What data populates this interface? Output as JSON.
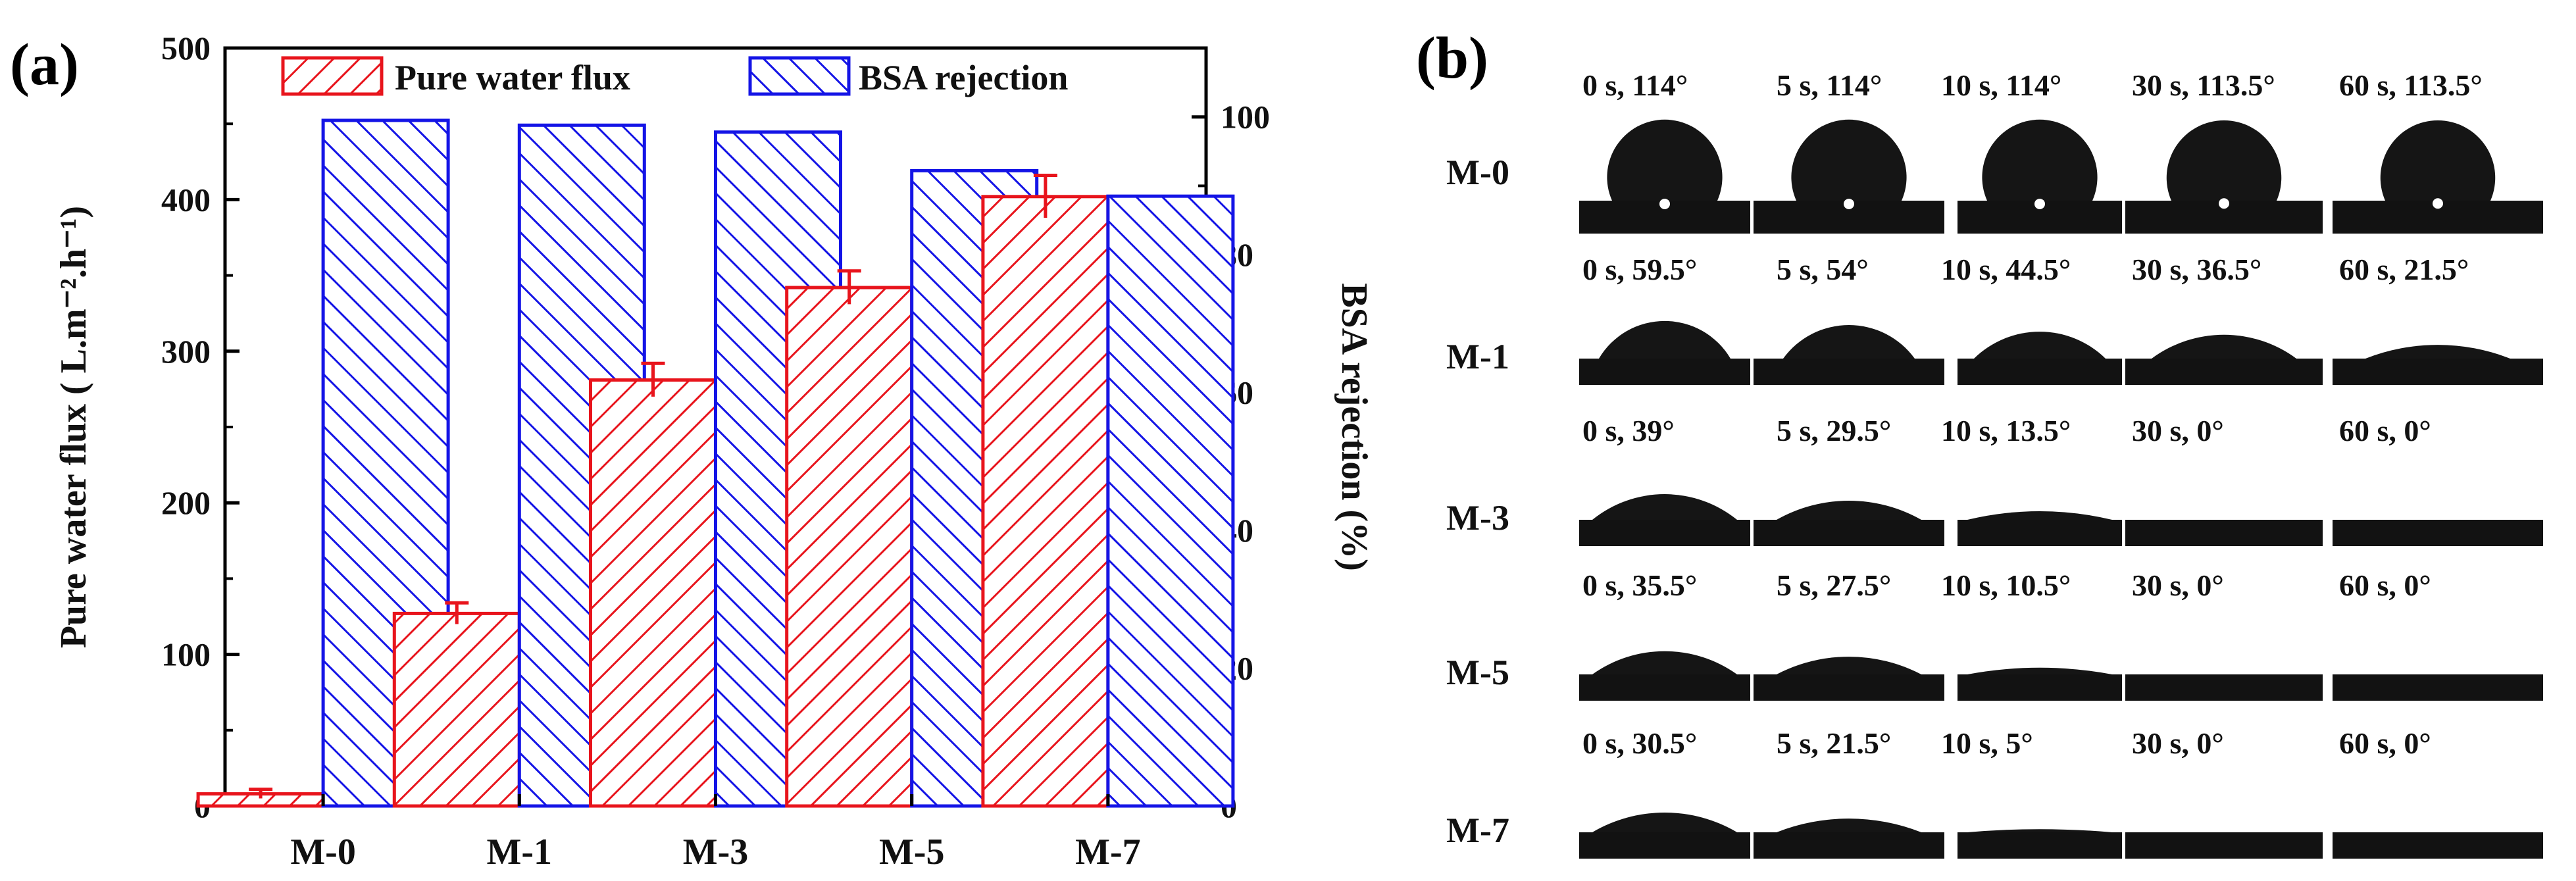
{
  "panel_a_label": "(a)",
  "panel_b_label": "(b)",
  "chart_data": {
    "type": "bar",
    "categories": [
      "M-0",
      "M-1",
      "M-3",
      "M-5",
      "M-7"
    ],
    "series": [
      {
        "name": "Pure water flux",
        "axis": "left",
        "color": "#e8141c",
        "hatch": "forward-diagonal",
        "values": [
          8,
          127,
          281,
          342,
          402
        ],
        "errors": [
          3,
          7,
          11,
          11,
          14
        ]
      },
      {
        "name": "BSA rejection",
        "axis": "right",
        "color": "#1414e6",
        "hatch": "back-diagonal",
        "values": [
          99.5,
          98.8,
          97.8,
          92.2,
          88.5
        ]
      }
    ],
    "ylabel_left": "Pure water flux ( L.m⁻².h⁻¹)",
    "ylabel_right": "BSA rejection (%)",
    "ylim_left": [
      0,
      500
    ],
    "ylim_right": [
      0,
      110
    ],
    "yticks_left": [
      "0",
      "100",
      "200",
      "300",
      "400",
      "500"
    ],
    "yticks_right": [
      "0",
      "20",
      "40",
      "60",
      "80",
      "100"
    ],
    "legend_position": "top",
    "grid": false
  },
  "contact_angle_panel": {
    "rows": [
      {
        "membrane": "M-0",
        "labels": [
          "0 s, 114°",
          "5 s, 114°",
          "10 s, 114°",
          "30 s, 113.5°",
          "60 s, 113.5°"
        ],
        "angles": [
          114,
          114,
          114,
          113.5,
          113.5
        ]
      },
      {
        "membrane": "M-1",
        "labels": [
          "0 s, 59.5°",
          "5 s, 54°",
          "10 s, 44.5°",
          "30 s, 36.5°",
          "60 s, 21.5°"
        ],
        "angles": [
          59.5,
          54,
          44.5,
          36.5,
          21.5
        ]
      },
      {
        "membrane": "M-3",
        "labels": [
          "0 s, 39°",
          "5 s, 29.5°",
          "10 s, 13.5°",
          "30 s, 0°",
          "60 s, 0°"
        ],
        "angles": [
          39,
          29.5,
          13.5,
          0,
          0
        ]
      },
      {
        "membrane": "M-5",
        "labels": [
          "0 s, 35.5°",
          "5 s, 27.5°",
          "10 s, 10.5°",
          "30 s, 0°",
          "60 s, 0°"
        ],
        "angles": [
          35.5,
          27.5,
          10.5,
          0,
          0
        ]
      },
      {
        "membrane": "M-7",
        "labels": [
          "0 s, 30.5°",
          "5 s, 21.5°",
          "10 s, 5°",
          "30 s, 0°",
          "60 s, 0°"
        ],
        "angles": [
          30.5,
          21.5,
          5,
          0,
          0
        ]
      }
    ]
  }
}
